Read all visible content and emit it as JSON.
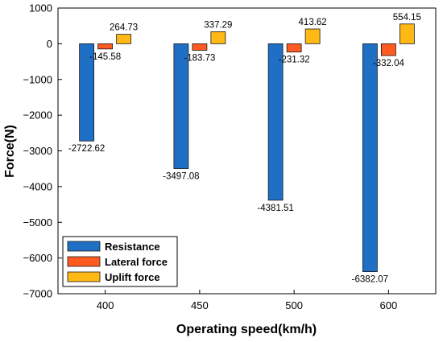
{
  "chart_data": {
    "type": "bar",
    "categories": [
      "400",
      "450",
      "500",
      "600"
    ],
    "series": [
      {
        "name": "Resistance",
        "color": "#1f6fc5",
        "values": [
          -2722.62,
          -3497.08,
          -4381.51,
          -6382.07
        ],
        "labels": [
          "-2722.62",
          "-3497.08",
          "-4381.51",
          "-6382.07"
        ]
      },
      {
        "name": "Lateral force",
        "color": "#ff5a1f",
        "values": [
          -145.58,
          -183.73,
          -231.32,
          -332.04
        ],
        "labels": [
          "-145.58",
          "-183.73",
          "-231.32",
          "-332.04"
        ]
      },
      {
        "name": "Uplift force",
        "color": "#ffb814",
        "values": [
          264.73,
          337.29,
          413.62,
          554.15
        ],
        "labels": [
          "264.73",
          "337.29",
          "413.62",
          "554.15"
        ]
      }
    ],
    "xlabel": "Operating speed(km/h)",
    "ylabel": "Force(N)",
    "ylim": [
      -7000,
      1000
    ],
    "yticks": [
      1000,
      0,
      -1000,
      -2000,
      -3000,
      -4000,
      -5000,
      -6000,
      -7000
    ],
    "ytick_labels": [
      "1000",
      "0",
      "−1000",
      "−2000",
      "−3000",
      "−4000",
      "−5000",
      "−6000",
      "−7000"
    ],
    "grid": false,
    "legend_position": "bottom-left",
    "axis_color": "#000000"
  }
}
